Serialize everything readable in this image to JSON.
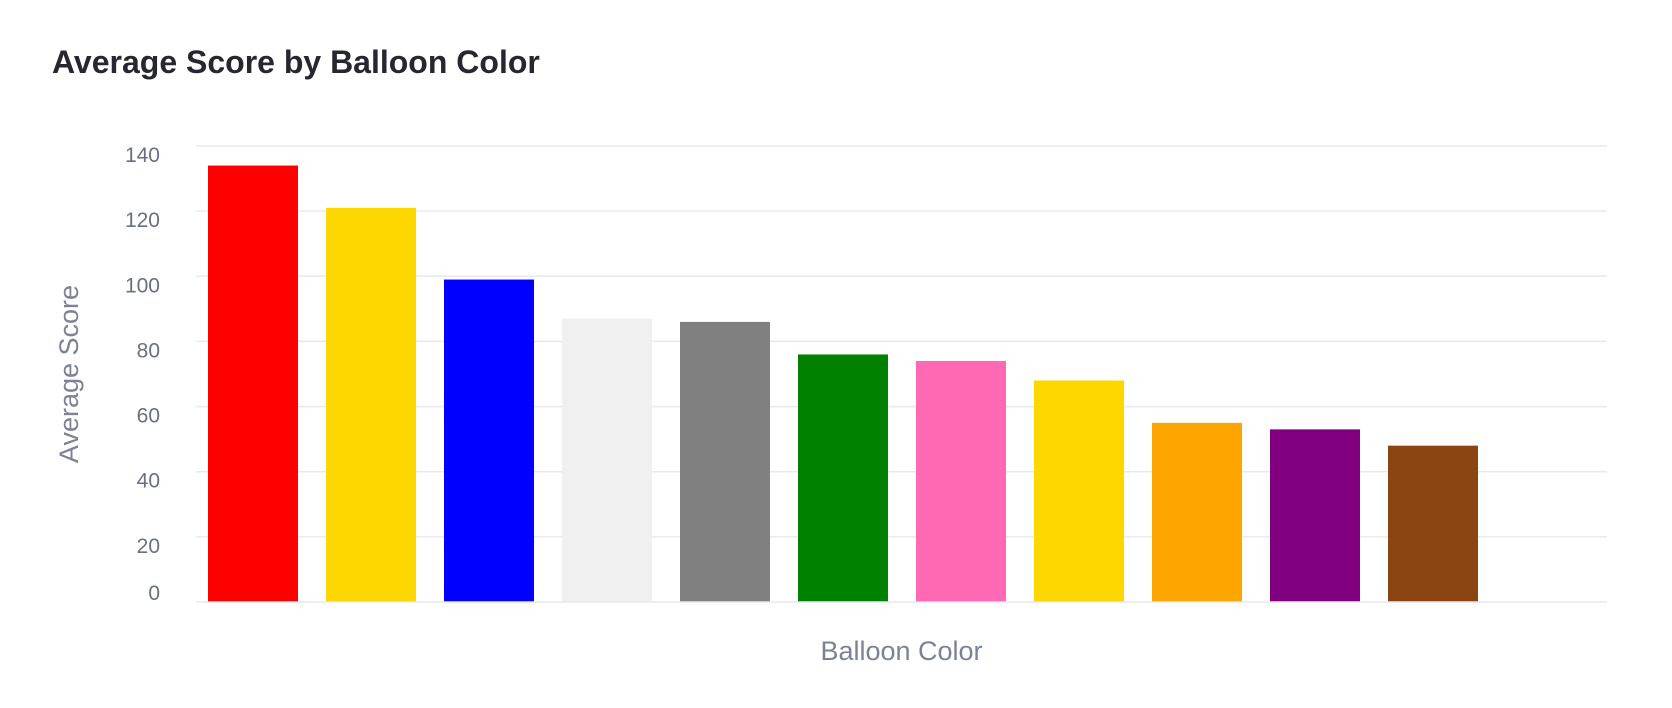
{
  "chart_data": {
    "type": "bar",
    "title": "Average Score by Balloon Color",
    "xlabel": "Balloon Color",
    "ylabel": "Average Score",
    "ylim": [
      0,
      140
    ],
    "yticks": [
      0,
      20,
      40,
      60,
      80,
      100,
      120,
      140
    ],
    "grid": true,
    "values": [
      134,
      121,
      99,
      87,
      86,
      76,
      74,
      68,
      55,
      53,
      48
    ],
    "colors": [
      "#ff0000",
      "#ffd700",
      "#0000ff",
      "#f0f0f0",
      "#808080",
      "#008000",
      "#ff69b4",
      "#ffd700",
      "#ffa500",
      "#800080",
      "#8b4513"
    ]
  }
}
